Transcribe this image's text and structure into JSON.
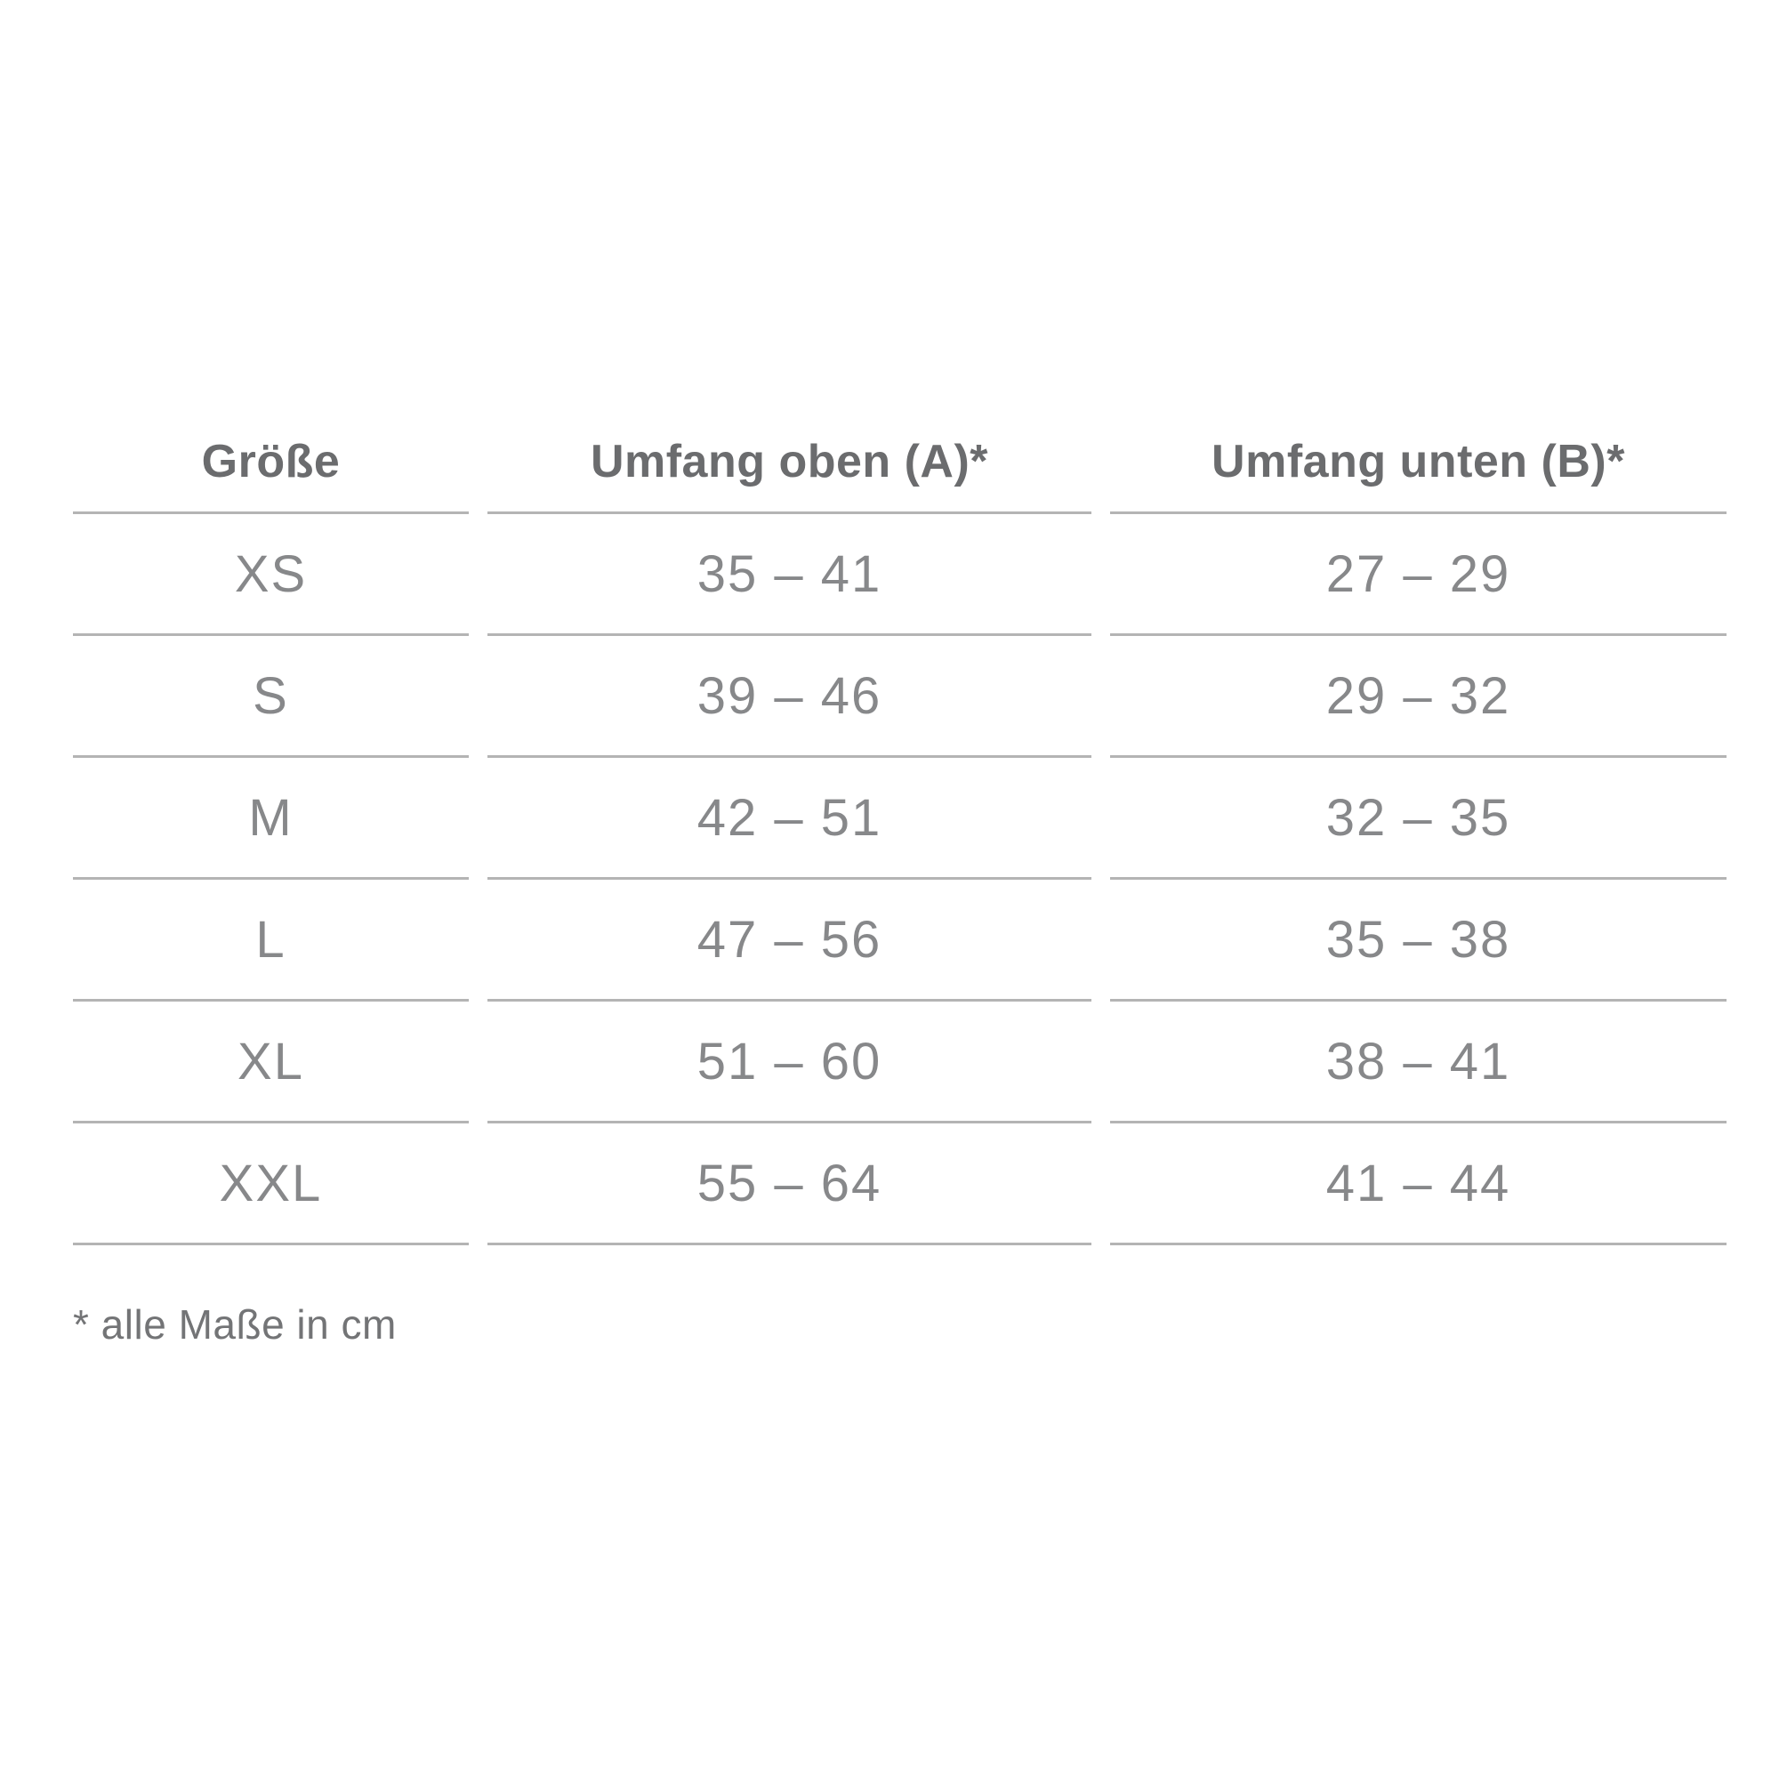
{
  "table": {
    "columns": [
      "Größe",
      "Umfang oben (A)*",
      "Umfang unten (B)*"
    ],
    "rows": [
      {
        "size": "XS",
        "oben": "35 – 41",
        "unten": "27 – 29"
      },
      {
        "size": "S",
        "oben": "39 – 46",
        "unten": "29 – 32"
      },
      {
        "size": "M",
        "oben": "42 – 51",
        "unten": "32 – 35"
      },
      {
        "size": "L",
        "oben": "47 – 56",
        "unten": "35 – 38"
      },
      {
        "size": "XL",
        "oben": "51 – 60",
        "unten": "38 – 41"
      },
      {
        "size": "XXL",
        "oben": "55 – 64",
        "unten": "41 – 44"
      }
    ]
  },
  "footnote": "* alle Maße in cm",
  "colors": {
    "background": "#ffffff",
    "header_text": "#6b6c6e",
    "body_text": "#87888a",
    "footnote_text": "#737476",
    "separator_line": "#b4b4b4"
  },
  "chart_data": {
    "type": "table",
    "title": "",
    "columns": [
      "Größe",
      "Umfang oben (A)*",
      "Umfang unten (B)*"
    ],
    "rows": [
      [
        "XS",
        "35 – 41",
        "27 – 29"
      ],
      [
        "S",
        "39 – 46",
        "29 – 32"
      ],
      [
        "M",
        "42 – 51",
        "32 – 35"
      ],
      [
        "L",
        "47 – 56",
        "35 – 38"
      ],
      [
        "XL",
        "51 – 60",
        "38 – 41"
      ],
      [
        "XXL",
        "55 – 64",
        "41 – 44"
      ]
    ],
    "ranges": [
      {
        "size": "XS",
        "umfang_oben_cm": [
          35,
          41
        ],
        "umfang_unten_cm": [
          27,
          29
        ]
      },
      {
        "size": "S",
        "umfang_oben_cm": [
          39,
          46
        ],
        "umfang_unten_cm": [
          29,
          32
        ]
      },
      {
        "size": "M",
        "umfang_oben_cm": [
          42,
          51
        ],
        "umfang_unten_cm": [
          32,
          35
        ]
      },
      {
        "size": "L",
        "umfang_oben_cm": [
          47,
          56
        ],
        "umfang_unten_cm": [
          35,
          38
        ]
      },
      {
        "size": "XL",
        "umfang_oben_cm": [
          51,
          60
        ],
        "umfang_unten_cm": [
          38,
          41
        ]
      },
      {
        "size": "XXL",
        "umfang_oben_cm": [
          55,
          64
        ],
        "umfang_unten_cm": [
          41,
          44
        ]
      }
    ],
    "units": "cm",
    "footnote": "* alle Maße in cm"
  }
}
